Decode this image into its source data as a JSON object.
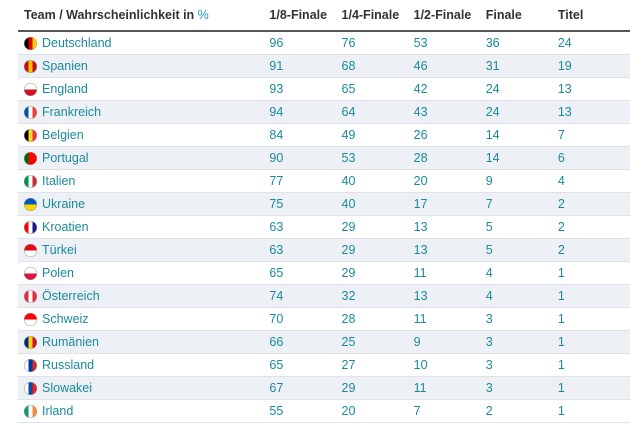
{
  "header": {
    "team": "Team / Wahrscheinlichkeit in",
    "percent_symbol": "%",
    "r16": "1/8-Finale",
    "qf": "1/4-Finale",
    "sf": "1/2-Finale",
    "final": "Finale",
    "title": "Titel"
  },
  "rows": [
    {
      "team": "Deutschland",
      "flag_icon": "germany-flag-icon",
      "r16": "96",
      "qf": "76",
      "sf": "53",
      "final": "36",
      "title": "24",
      "flag_colors": [
        "#000000",
        "#dd0000",
        "#ffce00"
      ]
    },
    {
      "team": "Spanien",
      "flag_icon": "spain-flag-icon",
      "r16": "91",
      "qf": "68",
      "sf": "46",
      "final": "31",
      "title": "19",
      "flag_colors": [
        "#c60b1e",
        "#ffc400",
        "#c60b1e"
      ]
    },
    {
      "team": "England",
      "flag_icon": "england-flag-icon",
      "r16": "93",
      "qf": "65",
      "sf": "42",
      "final": "24",
      "title": "13",
      "flag_colors": [
        "#ffffff",
        "#ce1124"
      ]
    },
    {
      "team": "Frankreich",
      "flag_icon": "france-flag-icon",
      "r16": "94",
      "qf": "64",
      "sf": "43",
      "final": "24",
      "title": "13",
      "flag_colors": [
        "#0055a4",
        "#ffffff",
        "#ef4135"
      ]
    },
    {
      "team": "Belgien",
      "flag_icon": "belgium-flag-icon",
      "r16": "84",
      "qf": "49",
      "sf": "26",
      "final": "14",
      "title": "7",
      "flag_colors": [
        "#000000",
        "#fdda24",
        "#ef3340"
      ]
    },
    {
      "team": "Portugal",
      "flag_icon": "portugal-flag-icon",
      "r16": "90",
      "qf": "53",
      "sf": "28",
      "final": "14",
      "title": "6",
      "flag_colors": [
        "#006600",
        "#ff0000",
        "#ff0000"
      ]
    },
    {
      "team": "Italien",
      "flag_icon": "italy-flag-icon",
      "r16": "77",
      "qf": "40",
      "sf": "20",
      "final": "9",
      "title": "4",
      "flag_colors": [
        "#009246",
        "#ffffff",
        "#ce2b37"
      ]
    },
    {
      "team": "Ukraine",
      "flag_icon": "ukraine-flag-icon",
      "r16": "75",
      "qf": "40",
      "sf": "17",
      "final": "7",
      "title": "2",
      "flag_colors": [
        "#0057b7",
        "#ffd700"
      ]
    },
    {
      "team": "Kroatien",
      "flag_icon": "croatia-flag-icon",
      "r16": "63",
      "qf": "29",
      "sf": "13",
      "final": "5",
      "title": "2",
      "flag_colors": [
        "#ff0000",
        "#ffffff",
        "#171796"
      ]
    },
    {
      "team": "Türkei",
      "flag_icon": "turkey-flag-icon",
      "r16": "63",
      "qf": "29",
      "sf": "13",
      "final": "5",
      "title": "2",
      "flag_colors": [
        "#e30a17",
        "#ffffff"
      ]
    },
    {
      "team": "Polen",
      "flag_icon": "poland-flag-icon",
      "r16": "65",
      "qf": "29",
      "sf": "11",
      "final": "4",
      "title": "1",
      "flag_colors": [
        "#ffffff",
        "#dc143c"
      ]
    },
    {
      "team": "Österreich",
      "flag_icon": "austria-flag-icon",
      "r16": "74",
      "qf": "32",
      "sf": "13",
      "final": "4",
      "title": "1",
      "flag_colors": [
        "#ed2939",
        "#ffffff",
        "#ed2939"
      ]
    },
    {
      "team": "Schweiz",
      "flag_icon": "switzerland-flag-icon",
      "r16": "70",
      "qf": "28",
      "sf": "11",
      "final": "3",
      "title": "1",
      "flag_colors": [
        "#ff0000",
        "#ffffff"
      ]
    },
    {
      "team": "Rumänien",
      "flag_icon": "romania-flag-icon",
      "r16": "66",
      "qf": "25",
      "sf": "9",
      "final": "3",
      "title": "1",
      "flag_colors": [
        "#002b7f",
        "#fcd116",
        "#ce1126"
      ]
    },
    {
      "team": "Russland",
      "flag_icon": "russia-flag-icon",
      "r16": "65",
      "qf": "27",
      "sf": "10",
      "final": "3",
      "title": "1",
      "flag_colors": [
        "#ffffff",
        "#0039a6",
        "#d52b1e"
      ]
    },
    {
      "team": "Slowakei",
      "flag_icon": "slovakia-flag-icon",
      "r16": "67",
      "qf": "29",
      "sf": "11",
      "final": "3",
      "title": "1",
      "flag_colors": [
        "#ffffff",
        "#0b4ea2",
        "#ee1c25"
      ]
    },
    {
      "team": "Irland",
      "flag_icon": "ireland-flag-icon",
      "r16": "55",
      "qf": "20",
      "sf": "7",
      "final": "2",
      "title": "1",
      "flag_colors": [
        "#169b62",
        "#ffffff",
        "#ff883e"
      ]
    }
  ]
}
